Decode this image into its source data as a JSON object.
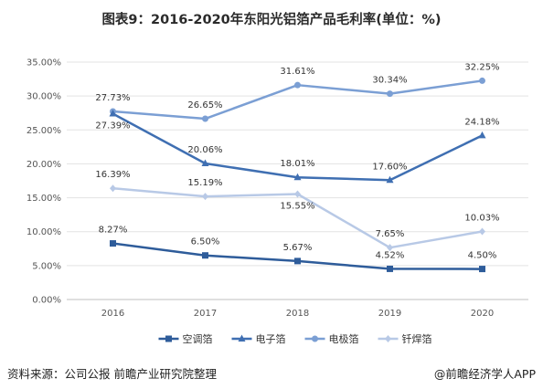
{
  "chart_data": {
    "type": "line",
    "title": "图表9：2016-2020年东阳光铝箔产品毛利率(单位：%)",
    "categories": [
      "2016",
      "2017",
      "2018",
      "2019",
      "2020"
    ],
    "ylim": [
      0,
      35
    ],
    "yticks": [
      "0.00%",
      "5.00%",
      "10.00%",
      "15.00%",
      "20.00%",
      "25.00%",
      "30.00%",
      "35.00%"
    ],
    "grid": true,
    "legend_position": "bottom",
    "series": [
      {
        "name": "空调箔",
        "marker": "square",
        "color": "#2e5c9a",
        "values": [
          8.27,
          6.5,
          5.67,
          4.52,
          4.5
        ],
        "labels": [
          "8.27%",
          "6.50%",
          "5.67%",
          "4.52%",
          "4.50%"
        ]
      },
      {
        "name": "电子箔",
        "marker": "triangle",
        "color": "#3f6fb2",
        "values": [
          27.39,
          20.06,
          18.01,
          17.6,
          24.18
        ],
        "labels": [
          "27.39%",
          "20.06%",
          "18.01%",
          "17.60%",
          "24.18%"
        ]
      },
      {
        "name": "电极箔",
        "marker": "circle",
        "color": "#7b9fd4",
        "values": [
          27.73,
          26.65,
          31.61,
          30.34,
          32.25
        ],
        "labels": [
          "27.73%",
          "26.65%",
          "31.61%",
          "30.34%",
          "32.25%"
        ]
      },
      {
        "name": "钎焊箔",
        "marker": "diamond",
        "color": "#b8c9e6",
        "values": [
          16.39,
          15.19,
          15.55,
          7.65,
          10.03
        ],
        "labels": [
          "16.39%",
          "15.19%",
          "15.55%",
          "7.65%",
          "10.03%"
        ]
      }
    ]
  },
  "footer": {
    "source": "资料来源：公司公报 前瞻产业研究院整理",
    "brand": "@前瞻经济学人APP"
  }
}
